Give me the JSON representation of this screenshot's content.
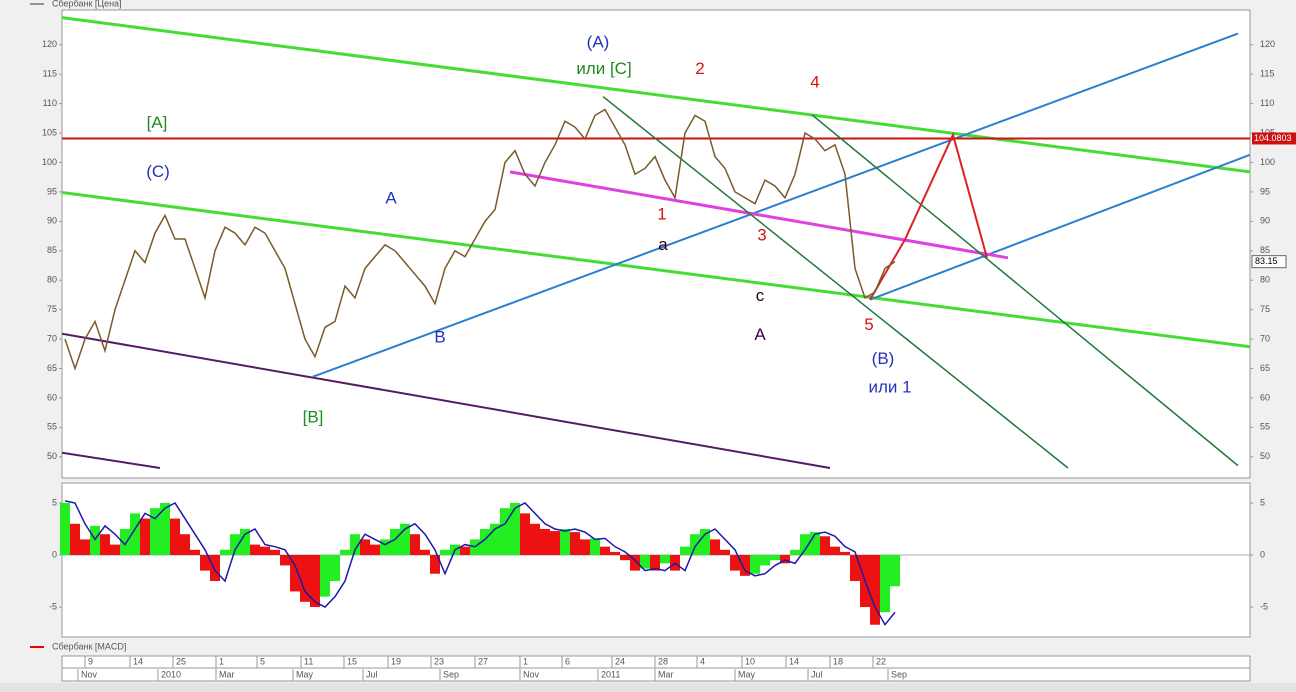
{
  "chart_data": [
    {
      "type": "line",
      "title": "Сбербанк [Цена]",
      "xlim": [
        -0.3,
        118.5
      ],
      "ylim": [
        46.4,
        125.9
      ],
      "yticks": [
        50,
        55,
        60,
        65,
        70,
        75,
        80,
        85,
        90,
        95,
        100,
        105,
        110,
        115,
        120
      ],
      "series": [
        {
          "name": "Сбербанк",
          "color": "#7a5a2a",
          "values": [
            70,
            65,
            70,
            73,
            68,
            75,
            80,
            85,
            83,
            88,
            91,
            87,
            87,
            82,
            77,
            85,
            89,
            88,
            86,
            89,
            88,
            85,
            82,
            76,
            70,
            67,
            72,
            73,
            79,
            77,
            82,
            84,
            86,
            85,
            83,
            81,
            79,
            76,
            82,
            85,
            84,
            87,
            90,
            92,
            100,
            102,
            98,
            96,
            100,
            103,
            107,
            106,
            104,
            108,
            109,
            106,
            103,
            98,
            99,
            101,
            97,
            94,
            105,
            108,
            107,
            101,
            99,
            95,
            94,
            93,
            97,
            96,
            94,
            98,
            105,
            104,
            102,
            103,
            98,
            82,
            77,
            78,
            82,
            83.15
          ]
        }
      ],
      "lines": [
        {
          "color": "#44dd33",
          "width": 3,
          "points": [
            [
              -0.3,
              124.6
            ],
            [
              118.5,
              98.4
            ]
          ]
        },
        {
          "color": "#44dd33",
          "width": 3,
          "points": [
            [
              -0.3,
              94.9
            ],
            [
              118.5,
              68.7
            ]
          ]
        },
        {
          "color": "#551a66",
          "width": 2,
          "points": [
            [
              -0.3,
              70.9
            ],
            [
              76.5,
              48.1
            ]
          ]
        },
        {
          "color": "#551a66",
          "width": 2,
          "points": [
            [
              -0.3,
              50.7
            ],
            [
              9.5,
              48.1
            ]
          ]
        },
        {
          "color": "#2a7fd0",
          "width": 2,
          "points": [
            [
              24.8,
              63.6
            ],
            [
              117.3,
              121.9
            ]
          ]
        },
        {
          "color": "#2a7fd0",
          "width": 2,
          "points": [
            [
              80.5,
              76.7
            ],
            [
              118.5,
              101.3
            ]
          ]
        },
        {
          "color": "#cc1111",
          "width": 2,
          "points": [
            [
              -0.3,
              104.0803
            ],
            [
              118.5,
              104.0803
            ]
          ]
        },
        {
          "color": "#e040e0",
          "width": 3,
          "points": [
            [
              44.5,
              98.4
            ],
            [
              94.3,
              83.8
            ]
          ]
        },
        {
          "color": "#1f7a3a",
          "width": 1.5,
          "points": [
            [
              53.8,
              111.2
            ],
            [
              100.3,
              48.1
            ]
          ]
        },
        {
          "color": "#1f7a3a",
          "width": 1.5,
          "points": [
            [
              74.7,
              108.1
            ],
            [
              117.3,
              48.5
            ]
          ]
        },
        {
          "color": "#dd2222",
          "width": 2,
          "points": [
            [
              80.5,
              76.7
            ],
            [
              84,
              86.9
            ],
            [
              88.8,
              104.7
            ],
            [
              92.2,
              83.8
            ]
          ]
        }
      ],
      "level_label": 104.0803,
      "annotations": [
        {
          "text": "(A)",
          "x": 53.3,
          "y": 120.3,
          "color": "#2233bb"
        },
        {
          "text": "или [C]",
          "x": 53.9,
          "y": 115.8,
          "color": "#1e8c1e"
        },
        {
          "text": "2",
          "x": 63.5,
          "y": 115.8,
          "color": "#e01010"
        },
        {
          "text": "4",
          "x": 75,
          "y": 113.5,
          "color": "#e01010"
        },
        {
          "text": "[A]",
          "x": 9.2,
          "y": 106.6,
          "color": "#1e8c1e"
        },
        {
          "text": "(C)",
          "x": 9.3,
          "y": 98.3,
          "color": "#2233bb"
        },
        {
          "text": "A",
          "x": 32.6,
          "y": 93.8,
          "color": "#2233bb"
        },
        {
          "text": "1",
          "x": 59.7,
          "y": 91.1,
          "color": "#e01010"
        },
        {
          "text": "a",
          "x": 59.8,
          "y": 85.9,
          "color": "#220022"
        },
        {
          "text": "3",
          "x": 69.7,
          "y": 87.5,
          "color": "#e01010"
        },
        {
          "text": "c",
          "x": 69.5,
          "y": 77.2,
          "color": "#220022"
        },
        {
          "text": "A",
          "x": 69.5,
          "y": 70.6,
          "color": "#330044"
        },
        {
          "text": "B",
          "x": 37.5,
          "y": 70.2,
          "color": "#2233bb"
        },
        {
          "text": "5",
          "x": 80.4,
          "y": 72.3,
          "color": "#e01010"
        },
        {
          "text": "(B)",
          "x": 81.8,
          "y": 66.5,
          "color": "#2233bb"
        },
        {
          "text": "или 1",
          "x": 82.5,
          "y": 61.7,
          "color": "#2233bb"
        },
        {
          "text": "[B]",
          "x": 24.8,
          "y": 56.6,
          "color": "#1e8c1e"
        }
      ]
    },
    {
      "type": "bar",
      "title": "Сбербанк [MACD]",
      "xlim": [
        -0.3,
        118.5
      ],
      "ylim": [
        -7.88,
        6.92
      ],
      "yticks": [
        -5,
        0,
        5
      ],
      "rising_color": "#22ee22",
      "falling_color": "#ee1111",
      "values": [
        5,
        3,
        1.5,
        2.8,
        2,
        1,
        2.5,
        4,
        3.5,
        4.5,
        5,
        3.5,
        2,
        0.5,
        -1.5,
        -2.5,
        0.5,
        2,
        2.5,
        1,
        0.8,
        0.5,
        -1,
        -3.5,
        -4.5,
        -5,
        -4,
        -2.5,
        0.5,
        2,
        1.5,
        1,
        1.5,
        2.5,
        3,
        2,
        0.5,
        -1.8,
        0.5,
        1,
        0.8,
        1.5,
        2.5,
        3,
        4.5,
        5,
        4,
        3,
        2.5,
        2.3,
        2.5,
        2.2,
        1.5,
        1.6,
        0.8,
        0.3,
        -0.5,
        -1.5,
        -1.3,
        -1.5,
        -0.8,
        -1.5,
        0.8,
        2,
        2.5,
        1.5,
        0.5,
        -1.5,
        -2,
        -1.8,
        -1,
        -0.5,
        -0.8,
        0.5,
        2,
        2.2,
        1.8,
        0.8,
        0.3,
        -2.5,
        -5,
        -6.7,
        -5.5,
        -3
      ],
      "signal": {
        "color": "#1a1aaa",
        "values": [
          5.2,
          5,
          3,
          1.5,
          2.8,
          2,
          1,
          2.5,
          4,
          3.5,
          4.5,
          5,
          3.5,
          2,
          0.5,
          -1.5,
          -2.5,
          0.5,
          2,
          2.5,
          1,
          0.8,
          0.5,
          -1,
          -3.5,
          -4.5,
          -5,
          -4,
          -2.5,
          0.5,
          2,
          1.5,
          1,
          1.5,
          2.5,
          3,
          2,
          0.5,
          -1.8,
          0.5,
          1,
          0.8,
          1.5,
          2.5,
          3,
          4.5,
          5,
          4,
          3,
          2.5,
          2.3,
          2.5,
          2.2,
          1.5,
          1.6,
          0.8,
          0.3,
          -0.5,
          -1.5,
          -1.3,
          -1.5,
          -0.8,
          -1.5,
          0.8,
          2,
          2.5,
          1.5,
          0.5,
          -1.5,
          -2,
          -1.8,
          -1,
          -0.5,
          -0.8,
          0.5,
          2,
          2.2,
          1.8,
          0.8,
          0.3,
          -2.5,
          -5,
          -6.7,
          -5.5
        ]
      }
    }
  ],
  "date_axis": {
    "days": [
      {
        "value": 2,
        "label": "9"
      },
      {
        "value": 6.5,
        "label": "14"
      },
      {
        "value": 10.8,
        "label": "25"
      },
      {
        "value": 15.1,
        "label": "1"
      },
      {
        "value": 19.2,
        "label": "5"
      },
      {
        "value": 23.6,
        "label": "11"
      },
      {
        "value": 27.9,
        "label": "15"
      },
      {
        "value": 32.3,
        "label": "19"
      },
      {
        "value": 36.6,
        "label": "23"
      },
      {
        "value": 41,
        "label": "27"
      },
      {
        "value": 45.5,
        "label": "1"
      },
      {
        "value": 49.7,
        "label": "6"
      },
      {
        "value": 54.7,
        "label": "24"
      },
      {
        "value": 59,
        "label": "28"
      },
      {
        "value": 63.2,
        "label": "4"
      },
      {
        "value": 67.7,
        "label": "10"
      },
      {
        "value": 72.1,
        "label": "14"
      },
      {
        "value": 76.5,
        "label": "18"
      },
      {
        "value": 80.8,
        "label": "22"
      }
    ],
    "months": [
      {
        "value": 1.3,
        "label": "Nov"
      },
      {
        "value": 9.3,
        "label": "2010"
      },
      {
        "value": 15.1,
        "label": "Mar"
      },
      {
        "value": 22.8,
        "label": "May"
      },
      {
        "value": 29.8,
        "label": "Jul"
      },
      {
        "value": 37.5,
        "label": "Sep"
      },
      {
        "value": 45.5,
        "label": "Nov"
      },
      {
        "value": 53.3,
        "label": "2011"
      },
      {
        "value": 59,
        "label": "Mar"
      },
      {
        "value": 67,
        "label": "May"
      },
      {
        "value": 74.3,
        "label": "Jul"
      },
      {
        "value": 82.3,
        "label": "Sep"
      }
    ]
  }
}
